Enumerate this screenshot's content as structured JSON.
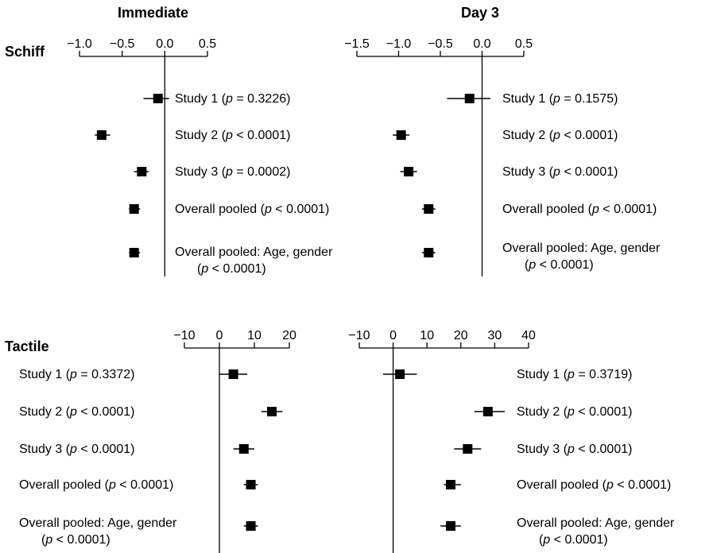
{
  "column_headers": {
    "immediate": "Immediate",
    "day3": "Day 3"
  },
  "chart_data": [
    {
      "type": "forest",
      "id": "schiff-immediate",
      "row_header": "Schiff",
      "ticks": [
        -1.0,
        -0.5,
        0.0,
        0.5
      ],
      "tick_labels": [
        "−1.0",
        "−0.5",
        "0.0",
        "0.5"
      ],
      "xlim": [
        -1.0,
        0.5
      ],
      "reference_line": 0,
      "points": [
        {
          "label": "Study 1",
          "p_op": "=",
          "p": "0.3226",
          "estimate": -0.08,
          "ci": [
            -0.25,
            0.05
          ]
        },
        {
          "label": "Study 2",
          "p_op": "<",
          "p": "0.0001",
          "estimate": -0.74,
          "ci": [
            -0.82,
            -0.64
          ]
        },
        {
          "label": "Study 3",
          "p_op": "=",
          "p": "0.0002",
          "estimate": -0.27,
          "ci": [
            -0.36,
            -0.19
          ]
        },
        {
          "label": "Overall pooled",
          "p_op": "<",
          "p": "0.0001",
          "estimate": -0.36,
          "ci": [
            -0.42,
            -0.29
          ]
        },
        {
          "label": "Overall pooled: Age, gender",
          "p_op": "<",
          "p": "0.0001",
          "estimate": -0.36,
          "ci": [
            -0.42,
            -0.29
          ]
        }
      ]
    },
    {
      "type": "forest",
      "id": "schiff-day3",
      "ticks": [
        -1.5,
        -1.0,
        -0.5,
        0.0,
        0.5
      ],
      "tick_labels": [
        "−1.5",
        "−1.0",
        "−0.5",
        "0.0",
        "0.5"
      ],
      "xlim": [
        -1.5,
        0.5
      ],
      "reference_line": 0,
      "points": [
        {
          "label": "Study 1",
          "p_op": "=",
          "p": "0.1575",
          "estimate": -0.15,
          "ci": [
            -0.42,
            0.1
          ]
        },
        {
          "label": "Study 2",
          "p_op": "<",
          "p": "0.0001",
          "estimate": -0.97,
          "ci": [
            -1.07,
            -0.87
          ]
        },
        {
          "label": "Study 3",
          "p_op": "<",
          "p": "0.0001",
          "estimate": -0.88,
          "ci": [
            -0.98,
            -0.78
          ]
        },
        {
          "label": "Overall pooled",
          "p_op": "<",
          "p": "0.0001",
          "estimate": -0.64,
          "ci": [
            -0.72,
            -0.56
          ]
        },
        {
          "label": "Overall pooled: Age, gender",
          "p_op": "<",
          "p": "0.0001",
          "estimate": -0.64,
          "ci": [
            -0.72,
            -0.56
          ]
        }
      ]
    },
    {
      "type": "forest",
      "id": "tactile-immediate",
      "row_header": "Tactile",
      "ticks": [
        -10,
        0,
        10,
        20
      ],
      "tick_labels": [
        "−10",
        "0",
        "10",
        "20"
      ],
      "xlim": [
        -10,
        20
      ],
      "reference_line": 0,
      "points": [
        {
          "label": "Study 1",
          "p_op": "=",
          "p": "0.3372",
          "estimate": 4,
          "ci": [
            0,
            8
          ]
        },
        {
          "label": "Study 2",
          "p_op": "<",
          "p": "0.0001",
          "estimate": 15,
          "ci": [
            12,
            18
          ]
        },
        {
          "label": "Study 3",
          "p_op": "<",
          "p": "0.0001",
          "estimate": 7,
          "ci": [
            4,
            10
          ]
        },
        {
          "label": "Overall pooled",
          "p_op": "<",
          "p": "0.0001",
          "estimate": 9,
          "ci": [
            7,
            11
          ]
        },
        {
          "label": "Overall pooled: Age, gender",
          "p_op": "<",
          "p": "0.0001",
          "estimate": 9,
          "ci": [
            7,
            11
          ]
        }
      ]
    },
    {
      "type": "forest",
      "id": "tactile-day3",
      "ticks": [
        -10,
        0,
        10,
        20,
        30,
        40
      ],
      "tick_labels": [
        "−10",
        "0",
        "10",
        "20",
        "30",
        "40"
      ],
      "xlim": [
        -10,
        40
      ],
      "reference_line": 0,
      "points": [
        {
          "label": "Study 1",
          "p_op": "=",
          "p": "0.3719",
          "estimate": 2,
          "ci": [
            -3,
            7
          ]
        },
        {
          "label": "Study 2",
          "p_op": "<",
          "p": "0.0001",
          "estimate": 28,
          "ci": [
            24,
            33
          ]
        },
        {
          "label": "Study 3",
          "p_op": "<",
          "p": "0.0001",
          "estimate": 22,
          "ci": [
            18,
            26
          ]
        },
        {
          "label": "Overall pooled",
          "p_op": "<",
          "p": "0.0001",
          "estimate": 17,
          "ci": [
            15,
            20
          ]
        },
        {
          "label": "Overall pooled: Age, gender",
          "p_op": "<",
          "p": "0.0001",
          "estimate": 17,
          "ci": [
            14,
            20
          ]
        }
      ]
    }
  ]
}
